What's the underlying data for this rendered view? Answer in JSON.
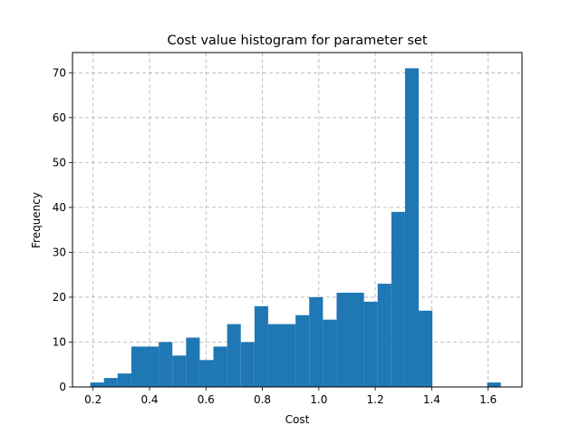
{
  "chart_data": {
    "type": "bar",
    "title": "Cost value histogram for parameter set",
    "xlabel": "Cost",
    "ylabel": "Frequency",
    "xlim": [
      0.127,
      1.72
    ],
    "ylim": [
      0,
      74.5
    ],
    "grid": true,
    "bin_start": 0.19,
    "bin_width": 0.0485,
    "bar_color": "#1f77b4",
    "x_ticks": [
      0.2,
      0.4,
      0.6,
      0.8,
      1.0,
      1.2,
      1.4,
      1.6
    ],
    "x_tick_labels": [
      "0.2",
      "0.4",
      "0.6",
      "0.8",
      "1.0",
      "1.2",
      "1.4",
      "1.6"
    ],
    "y_ticks": [
      0,
      10,
      20,
      30,
      40,
      50,
      60,
      70
    ],
    "y_tick_labels": [
      "0",
      "10",
      "20",
      "30",
      "40",
      "50",
      "60",
      "70"
    ],
    "values": [
      1,
      2,
      3,
      9,
      9,
      10,
      7,
      11,
      6,
      9,
      14,
      10,
      18,
      14,
      14,
      16,
      20,
      15,
      21,
      21,
      19,
      23,
      39,
      71,
      17,
      0,
      0,
      0,
      0,
      1
    ]
  }
}
